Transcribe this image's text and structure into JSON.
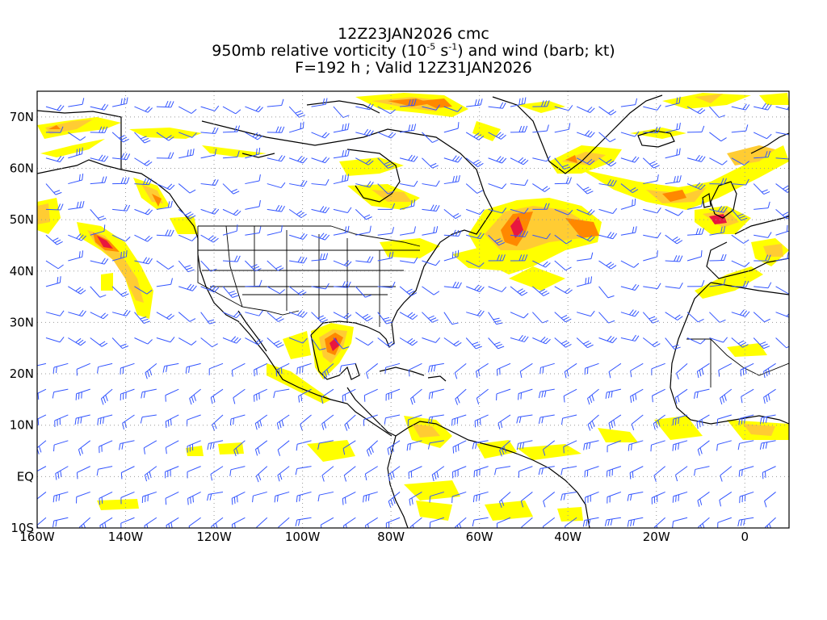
{
  "title": {
    "line1": "12Z23JAN2026 cmc",
    "line2_pre": "950mb relative vorticity (10",
    "line2_exp1": "-5",
    "line2_mid": " s",
    "line2_exp2": "-1",
    "line2_post": ") and wind (barb; kt)",
    "line3": "F=192 h ; Valid 12Z31JAN2026"
  },
  "map": {
    "lon_range": [
      -160,
      10
    ],
    "lat_range": [
      -10,
      75
    ],
    "lat_labels": [
      "70N",
      "60N",
      "50N",
      "40N",
      "30N",
      "20N",
      "10N",
      "EQ",
      "10S"
    ],
    "lat_values": [
      70,
      60,
      50,
      40,
      30,
      20,
      10,
      0,
      -10
    ],
    "lon_labels": [
      "160W",
      "140W",
      "120W",
      "100W",
      "80W",
      "60W",
      "40W",
      "20W",
      "0"
    ],
    "lon_values": [
      -160,
      -140,
      -120,
      -100,
      -80,
      -60,
      -40,
      -20,
      0
    ],
    "gridline_style": "dotted gray",
    "colors": {
      "low": "#ffff00",
      "mid": "#ffcc33",
      "high": "#ff8800",
      "max": "#e8163f",
      "barbs": "#3355ff",
      "coast": "#000000"
    }
  }
}
